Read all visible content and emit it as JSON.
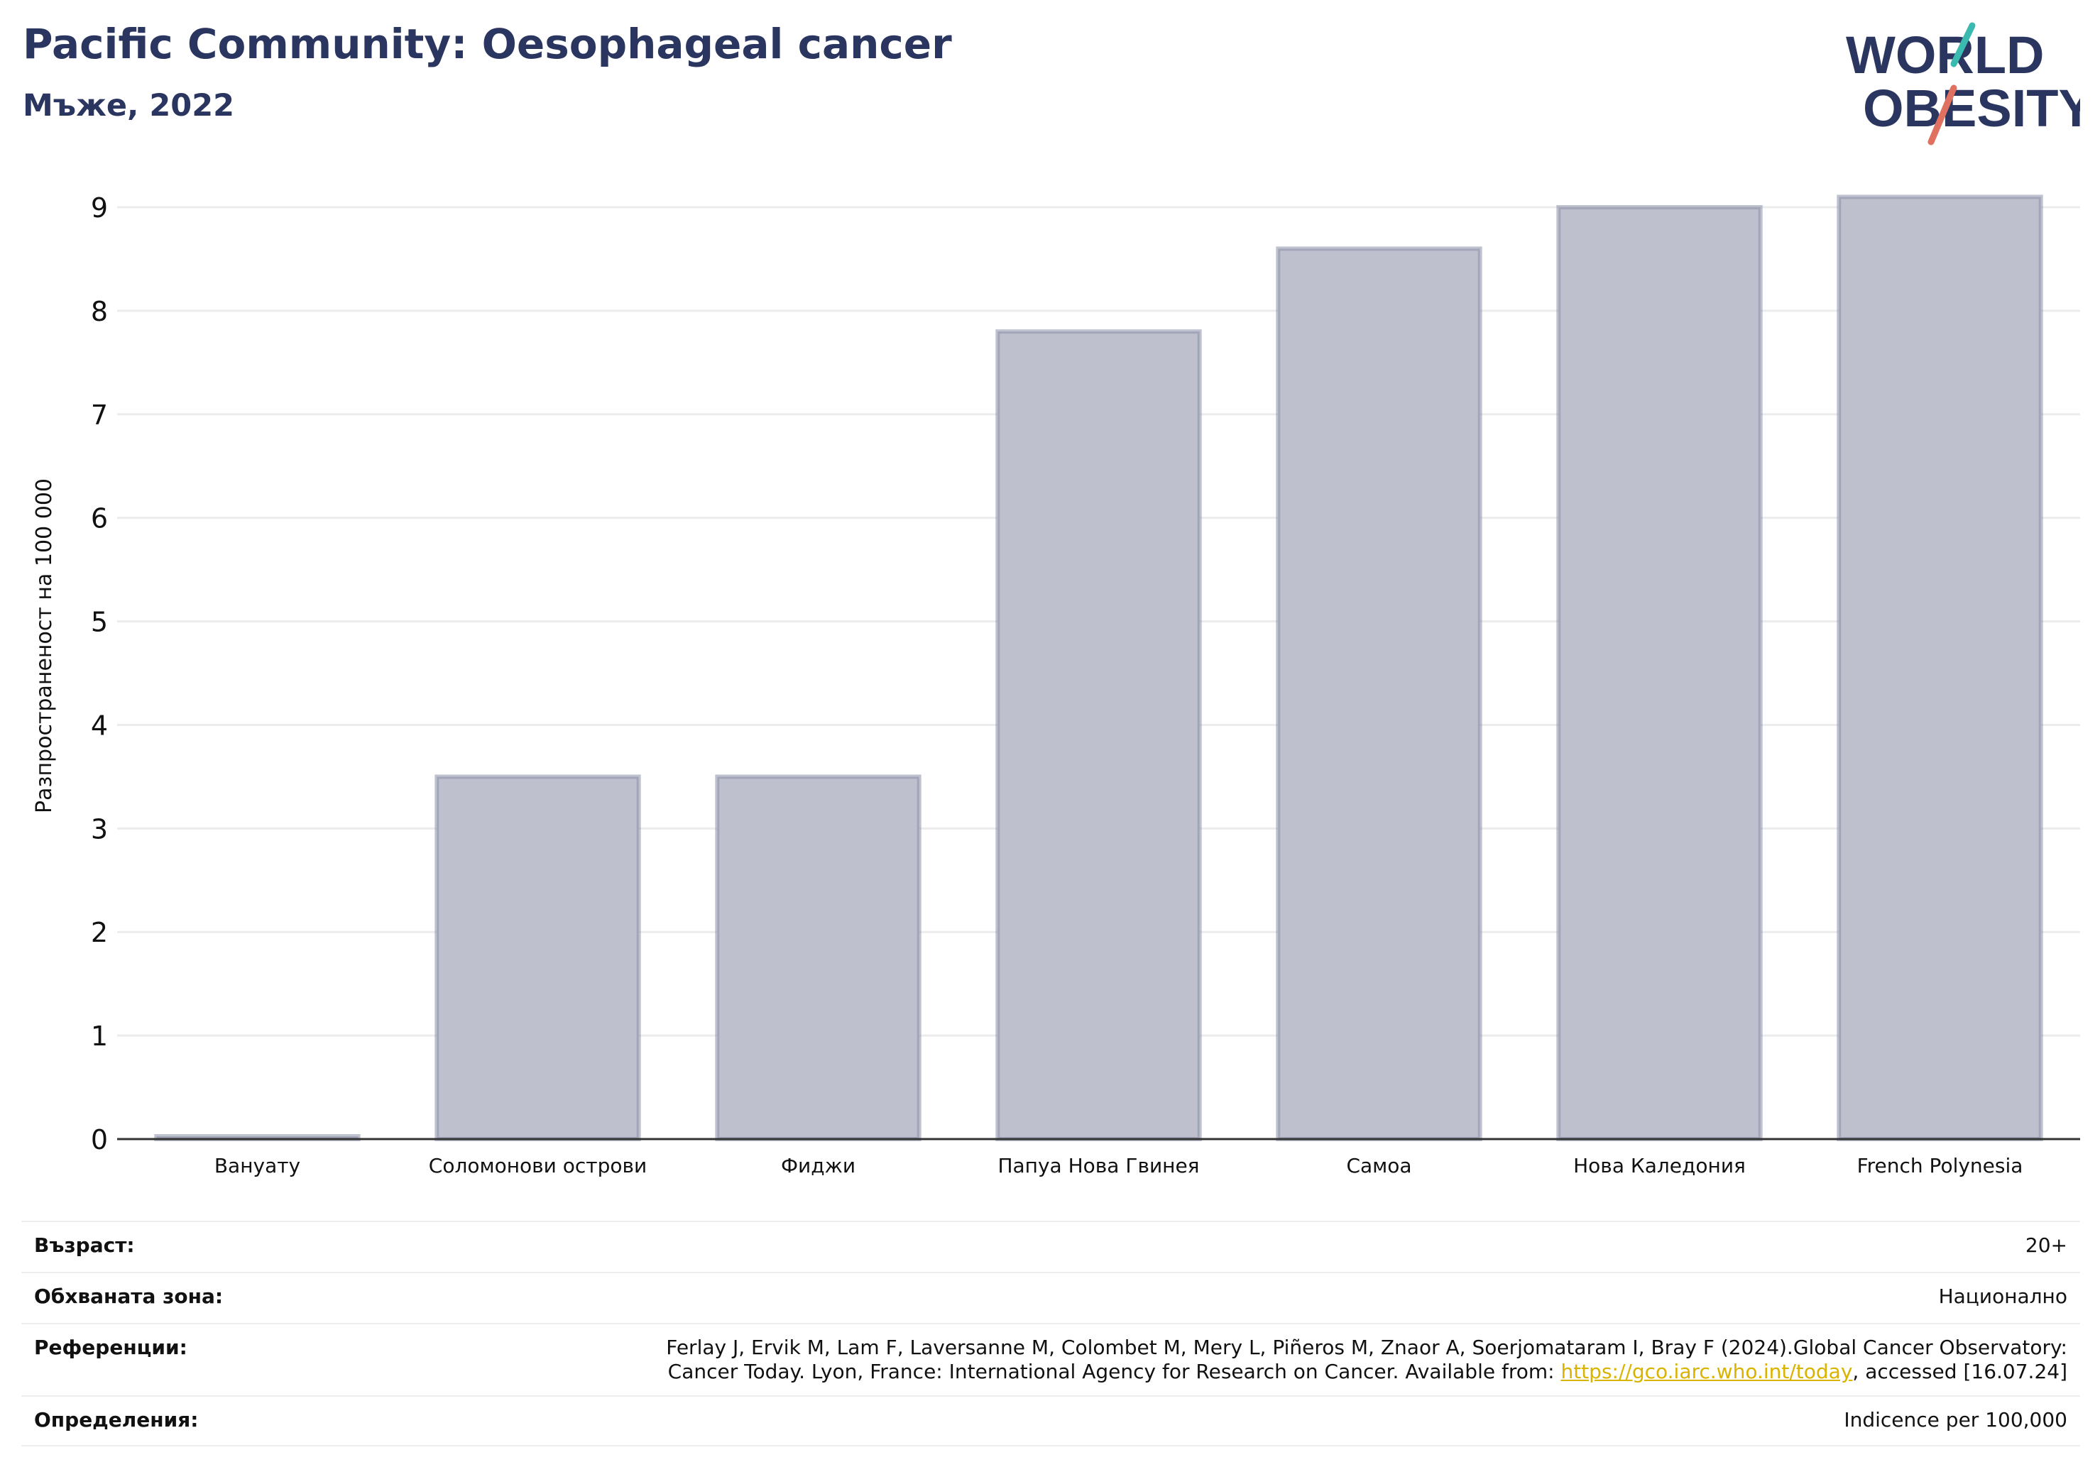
{
  "header": {
    "title": "Pacific Community: Oesophageal cancer",
    "subtitle": "Мъже, 2022"
  },
  "logo": {
    "line1": "WORLD",
    "line2": "OBESITY",
    "colors": {
      "text": "#2a3660",
      "slash_top": "#3bbab0",
      "slash_bottom": "#e07060"
    }
  },
  "chart_data": {
    "type": "bar",
    "ylabel": "Разпространеност  на 100 000",
    "xlabel": "",
    "categories": [
      "Вануату",
      "Соломонови острови",
      "Фиджи",
      "Папуа Нова Гвинея",
      "Самоа",
      "Нова Каледония",
      "French Polynesia"
    ],
    "values": [
      0.02,
      3.5,
      3.5,
      7.8,
      8.6,
      9.0,
      9.1
    ],
    "ylim": [
      0,
      9.5
    ],
    "yticks": [
      0,
      1,
      2,
      3,
      4,
      5,
      6,
      7,
      8,
      9
    ],
    "grid": true,
    "colors": {
      "bar_fill": "#bec1cd",
      "bar_stroke": "#8a8fa8",
      "grid": "#ececec",
      "axis": "#333333"
    }
  },
  "info": {
    "age": {
      "label": "Възраст:",
      "value": "20+"
    },
    "coverage": {
      "label": "Обхваната зона:",
      "value": "Национално"
    },
    "references": {
      "label": "Референции:",
      "line1": "Ferlay J, Ervik M, Lam F, Laversanne M, Colombet M, Mery L, Piñeros M, Znaor A, Soerjomataram I, Bray F (2024).Global Cancer Observatory:",
      "line2_pre": "Cancer Today. Lyon, France: International Agency for Research on Cancer. Available from: ",
      "link": "https://gco.iarc.who.int/today",
      "line2_post": ", accessed [16.07.24]"
    },
    "definitions": {
      "label": "Определения:",
      "value": "Indicence per 100,000"
    }
  }
}
